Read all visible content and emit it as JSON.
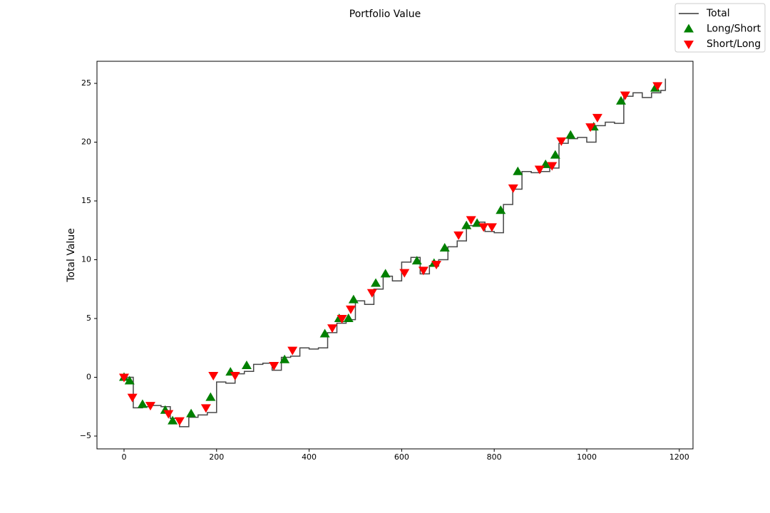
{
  "chart_data": {
    "type": "line",
    "title": "Portfolio Value",
    "ylabel": "Total Value",
    "xlim": [
      -58.5,
      1229.6
    ],
    "ylim": [
      -6.09,
      26.88
    ],
    "xticks": [
      0,
      200,
      400,
      600,
      800,
      1000,
      1200
    ],
    "yticks": [
      {
        "value": -5,
        "label": "−5"
      },
      0,
      5,
      10,
      15,
      20,
      25
    ],
    "legend_position": "upper right",
    "series": [
      {
        "name": "Total",
        "type": "line",
        "color": "#333333",
        "x": [
          0,
          20,
          40,
          60,
          80,
          100,
          120,
          140,
          160,
          180,
          200,
          220,
          240,
          260,
          280,
          300,
          320,
          340,
          360,
          380,
          400,
          420,
          440,
          460,
          480,
          500,
          520,
          540,
          560,
          580,
          600,
          620,
          640,
          660,
          680,
          700,
          720,
          740,
          760,
          780,
          800,
          820,
          840,
          860,
          880,
          900,
          920,
          940,
          960,
          980,
          1000,
          1020,
          1040,
          1060,
          1080,
          1100,
          1120,
          1140,
          1160,
          1170
        ],
        "values": [
          0,
          -2.6,
          -2.5,
          -2.4,
          -2.5,
          -3.5,
          -4.2,
          -3.4,
          -3.2,
          -3.0,
          -0.4,
          -0.5,
          0.3,
          0.5,
          1.1,
          1.2,
          0.6,
          1.7,
          1.8,
          2.5,
          2.4,
          2.5,
          3.8,
          4.6,
          4.9,
          6.5,
          6.2,
          7.5,
          8.6,
          8.2,
          9.8,
          10.2,
          8.8,
          9.5,
          10.0,
          11.1,
          11.6,
          12.9,
          13.2,
          12.4,
          12.3,
          14.7,
          16.0,
          17.5,
          17.4,
          17.5,
          17.8,
          19.9,
          20.3,
          20.4,
          20.0,
          21.4,
          21.7,
          21.6,
          23.9,
          24.2,
          23.8,
          24.2,
          24.4,
          25.4
        ]
      },
      {
        "name": "Long/Short",
        "type": "scatter",
        "marker": "^",
        "color": "green",
        "x": [
          0,
          12,
          40,
          89,
          105,
          145,
          187,
          230,
          265,
          347,
          434,
          465,
          485,
          496,
          544,
          565,
          633,
          670,
          693,
          740,
          763,
          814,
          851,
          911,
          932,
          965,
          1015,
          1074,
          1148
        ],
        "values": [
          0,
          -0.3,
          -2.3,
          -2.8,
          -3.7,
          -3.1,
          -1.7,
          0.45,
          1.0,
          1.5,
          3.7,
          5.0,
          5.0,
          6.6,
          8.0,
          8.8,
          9.9,
          9.7,
          11.0,
          12.9,
          13.1,
          14.2,
          17.5,
          18.1,
          18.9,
          20.6,
          21.3,
          23.5,
          24.6
        ]
      },
      {
        "name": "Short/Long",
        "type": "scatter",
        "marker": "v",
        "color": "red",
        "x": [
          0,
          18,
          57,
          96,
          120,
          177,
          193,
          240,
          324,
          364,
          450,
          471,
          490,
          536,
          606,
          647,
          675,
          723,
          750,
          777,
          795,
          841,
          898,
          925,
          945,
          1008,
          1023,
          1083,
          1153
        ],
        "values": [
          0,
          -1.7,
          -2.4,
          -3.1,
          -3.7,
          -2.6,
          0.15,
          0.15,
          1.0,
          2.3,
          4.2,
          5.0,
          5.8,
          7.2,
          8.9,
          9.1,
          9.6,
          12.1,
          13.4,
          12.8,
          12.8,
          16.1,
          17.7,
          18.0,
          20.1,
          21.3,
          22.1,
          24.0,
          24.8
        ]
      }
    ]
  }
}
